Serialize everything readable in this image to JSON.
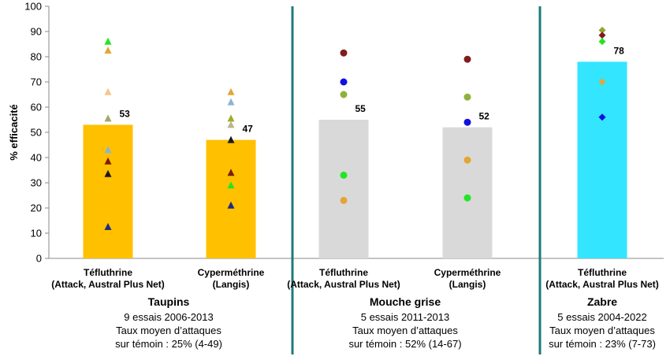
{
  "chart_data": {
    "type": "bar",
    "ylabel": "% efficacité",
    "ylim": [
      0,
      100
    ],
    "yticks": [
      0,
      10,
      20,
      30,
      40,
      50,
      60,
      70,
      80,
      90,
      100
    ],
    "groups": [
      {
        "title": "Taupins",
        "info": [
          "9 essais 2006-2013",
          "Taux moyen d’attaques",
          "sur témoin : 25% (4-49)"
        ],
        "bar_color": "#FFC000",
        "marker": "triangle",
        "bars": [
          {
            "label": [
              "Téfluthrine",
              "(Attack, Austral Plus Net)"
            ],
            "value": 53,
            "points": [
              {
                "y": 86,
                "color": "#22E622"
              },
              {
                "y": 82.5,
                "color": "#E3A635"
              },
              {
                "y": 66,
                "color": "#F5C58E"
              },
              {
                "y": 55.5,
                "color": "#A3A86A"
              },
              {
                "y": 43,
                "color": "#8CB3D9"
              },
              {
                "y": 38.5,
                "color": "#7F1D0E"
              },
              {
                "y": 33.5,
                "color": "#1A1A1A"
              },
              {
                "y": 12.5,
                "color": "#1F2C80"
              }
            ]
          },
          {
            "label": [
              "Cyperméthrine",
              "(Langis)"
            ],
            "value": 47,
            "points": [
              {
                "y": 66,
                "color": "#E3A635"
              },
              {
                "y": 62,
                "color": "#8CB3D9"
              },
              {
                "y": 55.5,
                "color": "#9BAF2B"
              },
              {
                "y": 53,
                "color": "#BDB58E"
              },
              {
                "y": 47,
                "color": "#1A1A1A"
              },
              {
                "y": 34,
                "color": "#7F1D0E"
              },
              {
                "y": 29,
                "color": "#22E622"
              },
              {
                "y": 21,
                "color": "#1F2C80"
              }
            ]
          }
        ]
      },
      {
        "title": "Mouche grise",
        "info": [
          "5 essais 2011-2013",
          "Taux moyen d’attaques",
          "sur témoin : 52% (14-67)"
        ],
        "bar_color": "#D9D9D9",
        "marker": "circle",
        "bars": [
          {
            "label": [
              "Téfluthrine",
              "(Attack, Austral Plus Net)"
            ],
            "value": 55,
            "points": [
              {
                "y": 81.5,
                "color": "#7F1D1D"
              },
              {
                "y": 70,
                "color": "#1010E0"
              },
              {
                "y": 65,
                "color": "#8FB13A"
              },
              {
                "y": 33,
                "color": "#22E622"
              },
              {
                "y": 23,
                "color": "#E3A635"
              }
            ]
          },
          {
            "label": [
              "Cyperméthrine",
              "(Langis)"
            ],
            "value": 52,
            "points": [
              {
                "y": 79,
                "color": "#7F1D1D"
              },
              {
                "y": 64,
                "color": "#8FB13A"
              },
              {
                "y": 54,
                "color": "#1010E0"
              },
              {
                "y": 39,
                "color": "#E3A635"
              },
              {
                "y": 24,
                "color": "#22E622"
              }
            ]
          }
        ]
      },
      {
        "title": "Zabre",
        "info": [
          "5 essais 2004-2022",
          "Taux moyen d’attaques",
          "sur témoin : 23% (7-73)"
        ],
        "bar_color": "#33E5FF",
        "marker": "diamond",
        "bars": [
          {
            "label": [
              "Téfluthrine",
              "(Attack, Austral Plus Net)"
            ],
            "value": 78,
            "points": [
              {
                "y": 90.5,
                "color": "#8FA630"
              },
              {
                "y": 88.5,
                "color": "#7F1D1D"
              },
              {
                "y": 86,
                "color": "#22E622"
              },
              {
                "y": 70,
                "color": "#E3A635"
              },
              {
                "y": 56,
                "color": "#1010E0"
              }
            ]
          }
        ]
      }
    ],
    "separator_color": "#1E7A7A"
  }
}
